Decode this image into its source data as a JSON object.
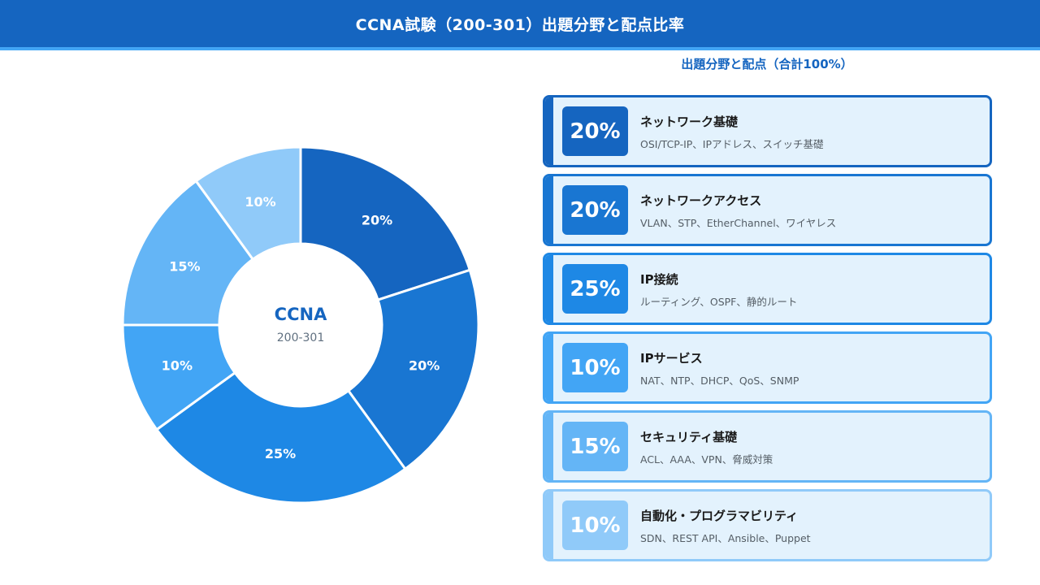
{
  "header": {
    "title": "CCNA試験（200-301）出題分野と配点比率"
  },
  "legend": {
    "title": "出題分野と配点（合計100%）"
  },
  "center": {
    "title": "CCNA",
    "subtitle": "200-301"
  },
  "colors": {
    "header_bg": "#1565c0",
    "header_border": "#42a5f5",
    "card_bg": "#e3f2fd",
    "slices": [
      "#1565c0",
      "#1976d2",
      "#1e88e5",
      "#42a5f5",
      "#64b5f6",
      "#90caf9"
    ]
  },
  "chart_data": {
    "type": "pie",
    "donut": true,
    "categories": [
      "ネットワーク基礎",
      "ネットワークアクセス",
      "IP接続",
      "IPサービス",
      "セキュリティ基礎",
      "自動化・プログラマビリティ"
    ],
    "values": [
      20,
      20,
      25,
      10,
      15,
      10
    ],
    "labels": [
      "20%",
      "20%",
      "25%",
      "10%",
      "15%",
      "10%"
    ],
    "unit": "%"
  },
  "domains": [
    {
      "percent": "20%",
      "name": "ネットワーク基礎",
      "desc": "OSI/TCP-IP、IPアドレス、スイッチ基礎"
    },
    {
      "percent": "20%",
      "name": "ネットワークアクセス",
      "desc": "VLAN、STP、EtherChannel、ワイヤレス"
    },
    {
      "percent": "25%",
      "name": "IP接続",
      "desc": "ルーティング、OSPF、静的ルート"
    },
    {
      "percent": "10%",
      "name": "IPサービス",
      "desc": "NAT、NTP、DHCP、QoS、SNMP"
    },
    {
      "percent": "15%",
      "name": "セキュリティ基礎",
      "desc": "ACL、AAA、VPN、脅威対策"
    },
    {
      "percent": "10%",
      "name": "自動化・プログラマビリティ",
      "desc": "SDN、REST API、Ansible、Puppet"
    }
  ]
}
